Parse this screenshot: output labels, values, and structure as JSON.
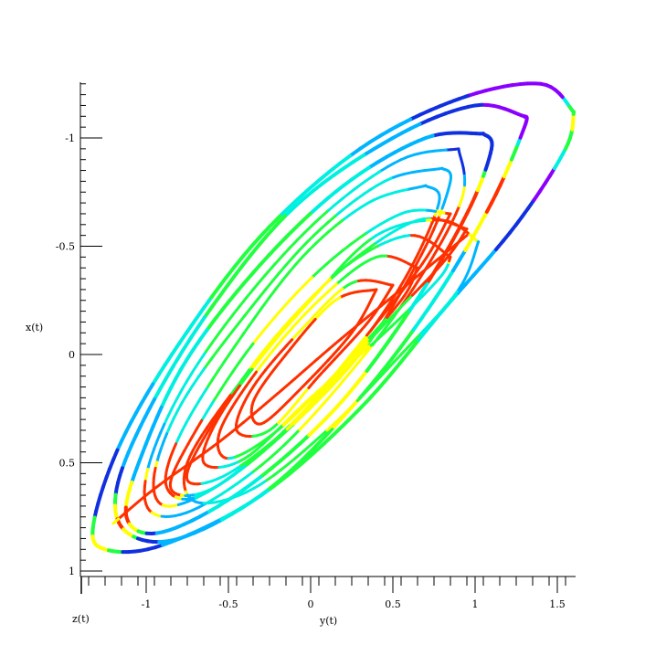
{
  "chart_data": {
    "type": "line",
    "title": "",
    "xlabel": "y(t)",
    "ylabel": "x(t)",
    "zlabel": "z(t)",
    "xlim": [
      -1.4,
      1.6
    ],
    "ylim": [
      -1.3,
      1.05
    ],
    "y_axis_inverted": true,
    "grid": false,
    "legend": "none",
    "x_ticks": [
      {
        "value": -1,
        "label": "-1"
      },
      {
        "value": -0.5,
        "label": "-0.5"
      },
      {
        "value": 0,
        "label": "0"
      },
      {
        "value": 0.5,
        "label": "0.5"
      },
      {
        "value": 1,
        "label": "1"
      },
      {
        "value": 1.5,
        "label": "1.5"
      }
    ],
    "y_ticks": [
      {
        "value": -1,
        "label": "-1"
      },
      {
        "value": -0.5,
        "label": "-0.5"
      },
      {
        "value": 0,
        "label": "0"
      },
      {
        "value": 0.5,
        "label": "0.5"
      },
      {
        "value": 1,
        "label": "1"
      }
    ],
    "color_map": [
      "#8a00ff",
      "#1030e0",
      "#00b4ff",
      "#00f0e0",
      "#20ff40",
      "#ffff00",
      "#ff3000"
    ],
    "series": [
      {
        "values": [
          [
            1.6,
            -1.12
          ],
          [
            1.4,
            -1.25
          ],
          [
            0.9,
            -1.18
          ],
          [
            0.3,
            -0.95
          ],
          [
            -0.3,
            -0.55
          ],
          [
            -0.8,
            -0.05
          ],
          [
            -1.15,
            0.4
          ],
          [
            -1.32,
            0.78
          ],
          [
            -1.25,
            0.9
          ],
          [
            -0.9,
            0.88
          ],
          [
            -0.3,
            0.65
          ],
          [
            0.3,
            0.25
          ],
          [
            0.8,
            -0.2
          ],
          [
            1.25,
            -0.6
          ],
          [
            1.55,
            -0.95
          ],
          [
            1.6,
            -1.12
          ]
        ]
      },
      {
        "values": [
          [
            1.3,
            -1.1
          ],
          [
            1.0,
            -1.15
          ],
          [
            0.5,
            -1.0
          ],
          [
            -0.1,
            -0.68
          ],
          [
            -0.6,
            -0.22
          ],
          [
            -0.98,
            0.25
          ],
          [
            -1.18,
            0.62
          ],
          [
            -1.12,
            0.82
          ],
          [
            -0.8,
            0.85
          ],
          [
            -0.25,
            0.62
          ],
          [
            0.3,
            0.2
          ],
          [
            0.75,
            -0.25
          ],
          [
            1.1,
            -0.7
          ],
          [
            1.3,
            -1.05
          ],
          [
            1.3,
            -1.1
          ]
        ]
      },
      {
        "values": [
          [
            1.05,
            -1.02
          ],
          [
            0.7,
            -1.0
          ],
          [
            0.2,
            -0.78
          ],
          [
            -0.3,
            -0.42
          ],
          [
            -0.75,
            0.02
          ],
          [
            -1.02,
            0.45
          ],
          [
            -1.12,
            0.75
          ],
          [
            -0.9,
            0.82
          ],
          [
            -0.4,
            0.62
          ],
          [
            0.15,
            0.25
          ],
          [
            0.6,
            -0.2
          ],
          [
            0.95,
            -0.65
          ],
          [
            1.1,
            -0.95
          ],
          [
            1.05,
            -1.02
          ]
        ]
      },
      {
        "values": [
          [
            0.9,
            -0.95
          ],
          [
            0.55,
            -0.9
          ],
          [
            0.1,
            -0.66
          ],
          [
            -0.35,
            -0.3
          ],
          [
            -0.75,
            0.12
          ],
          [
            -0.98,
            0.5
          ],
          [
            -0.98,
            0.72
          ],
          [
            -0.72,
            0.72
          ],
          [
            -0.25,
            0.48
          ],
          [
            0.2,
            0.12
          ],
          [
            0.62,
            -0.3
          ],
          [
            0.92,
            -0.72
          ],
          [
            0.9,
            -0.95
          ]
        ]
      },
      {
        "values": [
          [
            0.8,
            -0.86
          ],
          [
            0.45,
            -0.8
          ],
          [
            0.02,
            -0.55
          ],
          [
            -0.4,
            -0.18
          ],
          [
            -0.78,
            0.22
          ],
          [
            -0.95,
            0.55
          ],
          [
            -0.88,
            0.7
          ],
          [
            -0.55,
            0.6
          ],
          [
            -0.1,
            0.32
          ],
          [
            0.35,
            -0.05
          ],
          [
            0.7,
            -0.5
          ],
          [
            0.85,
            -0.8
          ],
          [
            0.8,
            -0.86
          ]
        ]
      },
      {
        "values": [
          [
            0.7,
            -0.78
          ],
          [
            0.35,
            -0.7
          ],
          [
            -0.05,
            -0.45
          ],
          [
            -0.45,
            -0.05
          ],
          [
            -0.78,
            0.35
          ],
          [
            -0.88,
            0.6
          ],
          [
            -0.7,
            0.66
          ],
          [
            -0.3,
            0.45
          ],
          [
            0.15,
            0.1
          ],
          [
            0.55,
            -0.32
          ],
          [
            0.78,
            -0.7
          ],
          [
            0.7,
            -0.78
          ]
        ]
      },
      {
        "values": [
          [
            0.85,
            -0.65
          ],
          [
            0.55,
            -0.65
          ],
          [
            0.1,
            -0.42
          ],
          [
            -0.35,
            -0.05
          ],
          [
            -0.72,
            0.38
          ],
          [
            -0.85,
            0.62
          ],
          [
            -0.6,
            0.62
          ],
          [
            -0.15,
            0.35
          ],
          [
            0.3,
            -0.05
          ],
          [
            0.68,
            -0.42
          ],
          [
            0.85,
            -0.65
          ]
        ]
      },
      {
        "values": [
          [
            0.95,
            -0.58
          ],
          [
            0.65,
            -0.62
          ],
          [
            0.2,
            -0.4
          ],
          [
            -0.25,
            -0.05
          ],
          [
            -0.62,
            0.35
          ],
          [
            -0.75,
            0.58
          ],
          [
            -0.5,
            0.55
          ],
          [
            -0.05,
            0.28
          ],
          [
            0.4,
            -0.1
          ],
          [
            0.8,
            -0.42
          ],
          [
            0.95,
            -0.58
          ]
        ]
      },
      {
        "values": [
          [
            1.02,
            -0.52
          ],
          [
            0.8,
            -0.62
          ],
          [
            0.4,
            -0.55
          ],
          [
            0.0,
            -0.25
          ],
          [
            -0.45,
            0.15
          ],
          [
            -0.75,
            0.5
          ],
          [
            -0.7,
            0.68
          ],
          [
            -0.35,
            0.62
          ],
          [
            0.1,
            0.35
          ],
          [
            0.55,
            0.0
          ],
          [
            0.9,
            -0.3
          ],
          [
            1.02,
            -0.52
          ]
        ]
      },
      {
        "values": [
          [
            0.85,
            -0.45
          ],
          [
            0.6,
            -0.55
          ],
          [
            0.2,
            -0.4
          ],
          [
            -0.2,
            -0.08
          ],
          [
            -0.55,
            0.28
          ],
          [
            -0.65,
            0.5
          ],
          [
            -0.4,
            0.48
          ],
          [
            0.0,
            0.2
          ],
          [
            0.45,
            -0.1
          ],
          [
            0.78,
            -0.35
          ],
          [
            0.85,
            -0.45
          ]
        ]
      },
      {
        "values": [
          [
            0.65,
            -0.4
          ],
          [
            0.4,
            -0.45
          ],
          [
            0.05,
            -0.25
          ],
          [
            -0.3,
            0.05
          ],
          [
            -0.55,
            0.35
          ],
          [
            -0.5,
            0.48
          ],
          [
            -0.2,
            0.35
          ],
          [
            0.2,
            0.05
          ],
          [
            0.55,
            -0.25
          ],
          [
            0.65,
            -0.4
          ]
        ]
      },
      {
        "values": [
          [
            0.5,
            -0.32
          ],
          [
            0.25,
            -0.33
          ],
          [
            -0.05,
            -0.12
          ],
          [
            -0.35,
            0.15
          ],
          [
            -0.45,
            0.35
          ],
          [
            -0.25,
            0.35
          ],
          [
            0.05,
            0.1
          ],
          [
            0.35,
            -0.15
          ],
          [
            0.5,
            -0.32
          ]
        ]
      },
      {
        "values": [
          [
            0.4,
            -0.3
          ],
          [
            0.15,
            -0.25
          ],
          [
            -0.15,
            0.0
          ],
          [
            -0.35,
            0.22
          ],
          [
            -0.3,
            0.32
          ],
          [
            -0.05,
            0.15
          ],
          [
            0.25,
            -0.1
          ],
          [
            0.4,
            -0.3
          ]
        ]
      },
      {
        "values": [
          [
            0.95,
            -0.55
          ],
          [
            0.55,
            -0.3
          ],
          [
            0.15,
            -0.05
          ],
          [
            -0.2,
            0.18
          ],
          [
            -0.55,
            0.4
          ],
          [
            -0.95,
            0.62
          ],
          [
            -1.2,
            0.78
          ]
        ]
      }
    ]
  }
}
